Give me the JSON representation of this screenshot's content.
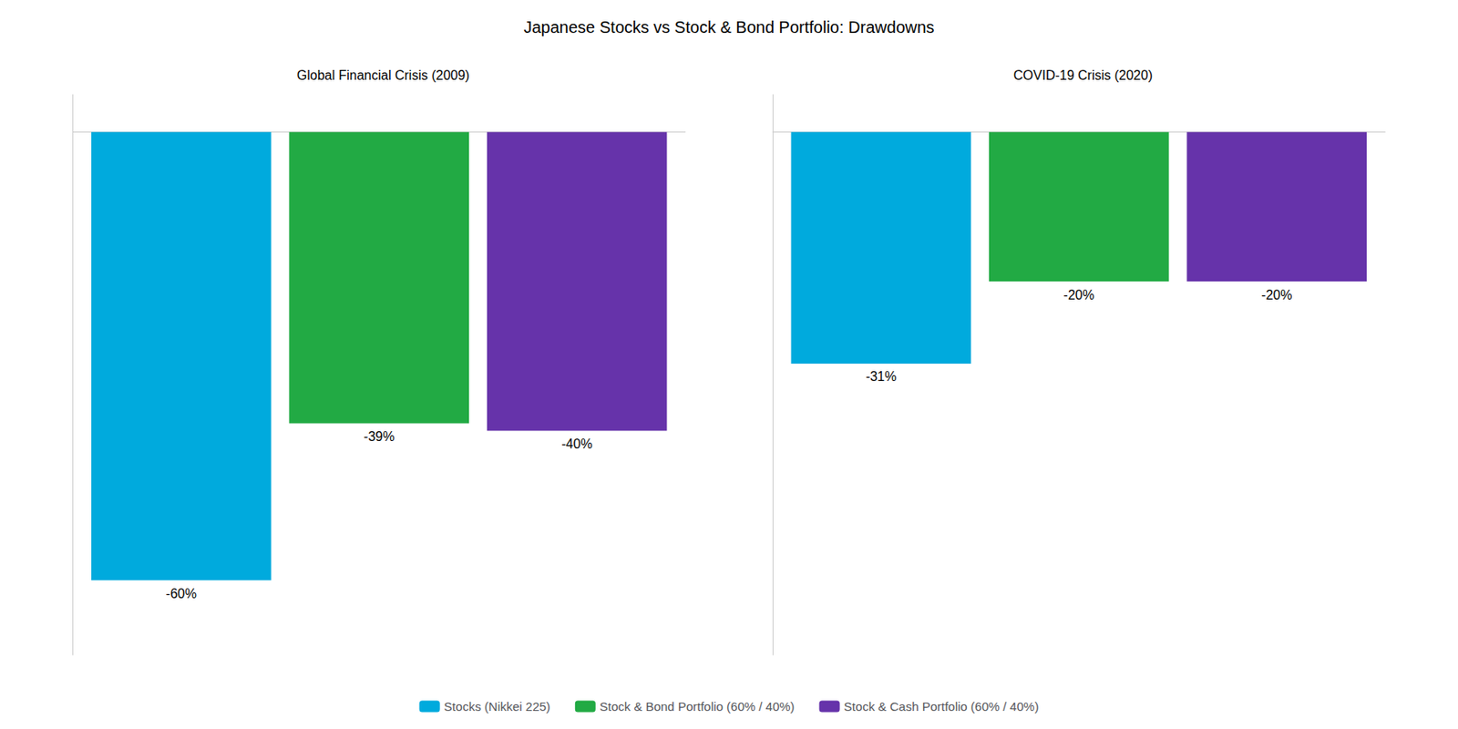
{
  "chart_data": {
    "type": "bar",
    "title": "Japanese Stocks vs Stock & Bond Portfolio: Drawdowns",
    "categories": [
      "Global Financial Crisis (2009)",
      "COVID-19 Crisis (2020)"
    ],
    "series": [
      {
        "name": "Stocks (Nikkei 225)",
        "color": "#00AADD",
        "values": [
          -60,
          -31
        ],
        "value_labels": [
          "-60%",
          "-31%"
        ]
      },
      {
        "name": "Stock & Bond Portfolio (60% / 40%)",
        "color": "#22AA44",
        "values": [
          -39,
          -20
        ],
        "value_labels": [
          "-39%",
          "-20%"
        ]
      },
      {
        "name": "Stock & Cash Portfolio (60% / 40%)",
        "color": "#6633AA",
        "values": [
          -40,
          -20
        ],
        "value_labels": [
          "-40%",
          "-20%"
        ]
      }
    ],
    "ylim": [
      -70,
      5
    ],
    "tick_labels": false,
    "grid": false,
    "legend": "bottom",
    "data_labels": true
  }
}
